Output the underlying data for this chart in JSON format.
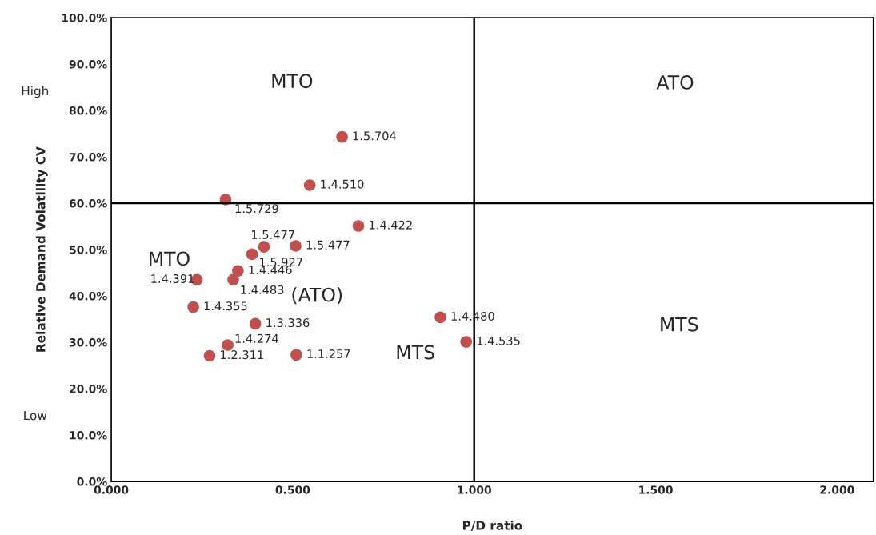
{
  "chart_data": {
    "type": "scatter",
    "xlabel": "P/D ratio",
    "ylabel": "Relative Demand Volatility CV",
    "series": [
      {
        "color": "#c0504d",
        "marker": "circle",
        "x": [
          0.636,
          0.547,
          0.315,
          0.681,
          0.421,
          0.508,
          0.388,
          0.349,
          0.336,
          0.236,
          0.226,
          0.397,
          0.321,
          0.271,
          0.51,
          0.907,
          0.978
        ],
        "values": [
          74.3,
          63.9,
          60.8,
          55.1,
          50.6,
          50.8,
          49.0,
          45.4,
          43.5,
          43.5,
          37.6,
          34.0,
          29.4,
          27.1,
          27.3,
          35.4,
          30.1
        ],
        "value_labels": [
          "1.5.704",
          "1.4.510",
          "1.5.729",
          "1.4.422",
          "1.5.477",
          "1.5.477",
          "1.5.927",
          "1.4.446",
          "1.4.483",
          "1.4.391",
          "1.4.355",
          "1.3.336",
          "1.4.274",
          "1.2.311",
          "1.1.257",
          "1.4.480",
          "1.4.535"
        ]
      }
    ],
    "xlim": [
      0,
      2.1
    ],
    "ylim": [
      0,
      100
    ],
    "xticks": [
      {
        "value": 0,
        "label": "0.000"
      },
      {
        "value": 0.5,
        "label": "0.500"
      },
      {
        "value": 1,
        "label": "1.000"
      },
      {
        "value": 1.5,
        "label": "1.500"
      },
      {
        "value": 2,
        "label": "2.000"
      }
    ],
    "yticks": [
      {
        "value": 0,
        "label": "0.0%"
      },
      {
        "value": 10,
        "label": "10.0%"
      },
      {
        "value": 20,
        "label": "20.0%"
      },
      {
        "value": 30,
        "label": "30.0%"
      },
      {
        "value": 40,
        "label": "40.0%"
      },
      {
        "value": 50,
        "label": "50.0%"
      },
      {
        "value": 60,
        "label": "60.0%"
      },
      {
        "value": 70,
        "label": "70.0%"
      },
      {
        "value": 80,
        "label": "80.0%"
      },
      {
        "value": 90,
        "label": "90.0%"
      },
      {
        "value": 100,
        "label": "100.0%"
      }
    ],
    "ref_lines": [
      {
        "axis": "x",
        "value": 1,
        "color": "#000000"
      },
      {
        "axis": "y",
        "value": 60,
        "color": "#000000"
      }
    ],
    "annotations": [
      "MTO",
      "ATO",
      "MTS",
      "MTO",
      "(ATO)",
      "MTS",
      "High",
      "Low"
    ],
    "grid": false,
    "legend": false
  }
}
